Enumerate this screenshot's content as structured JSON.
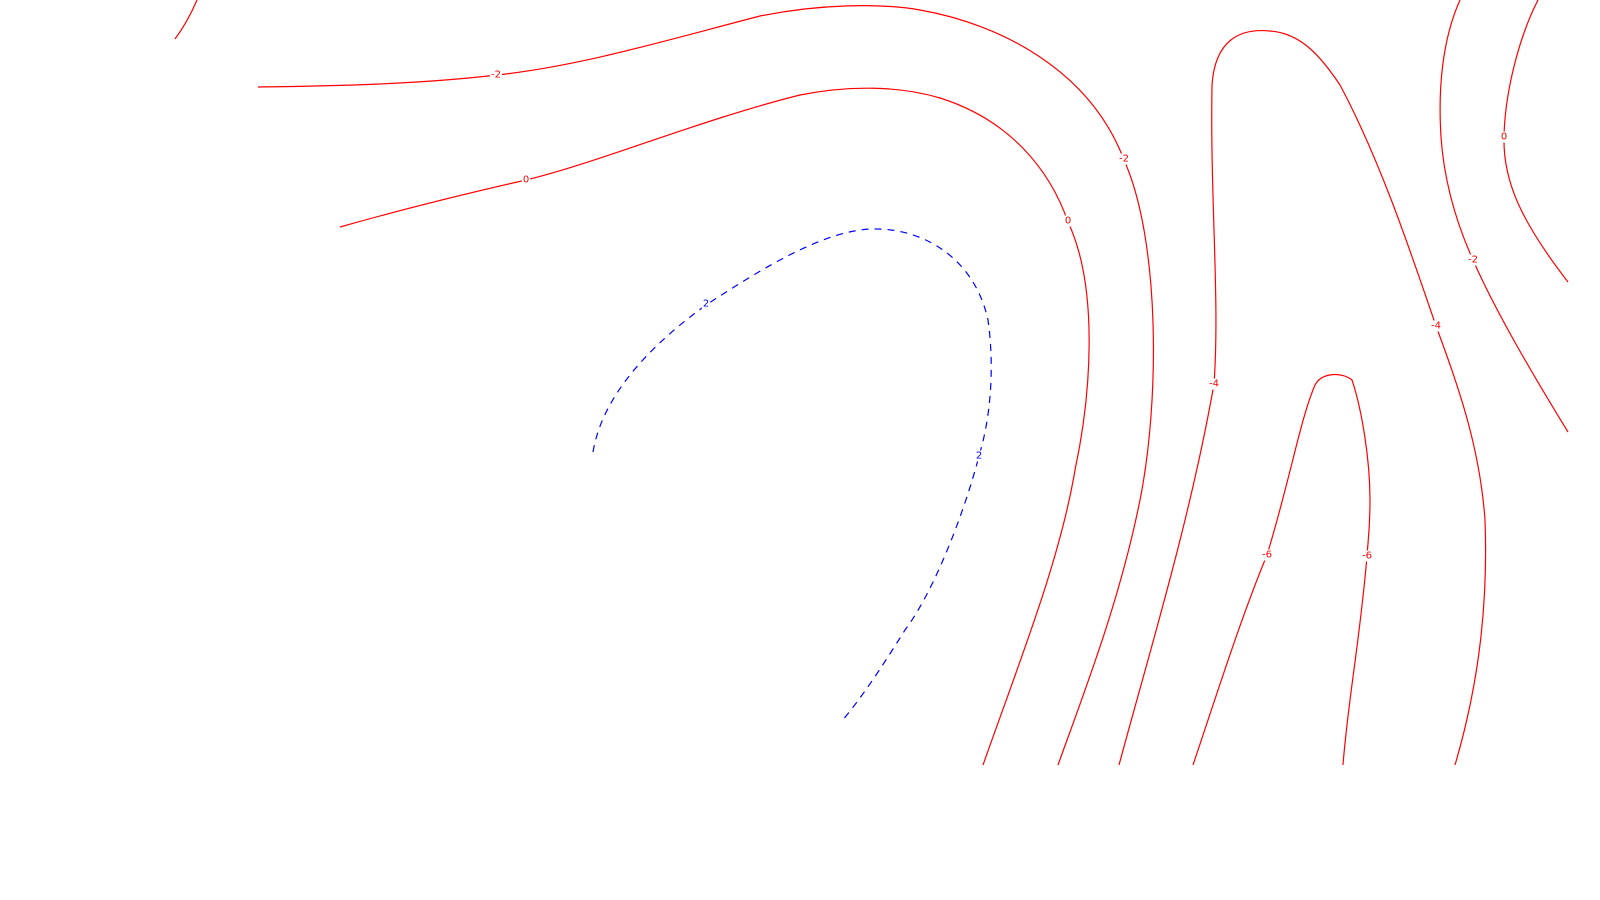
{
  "chart_data": {
    "type": "contour",
    "title": "",
    "xlabel": "",
    "ylabel": "",
    "grid": false,
    "colors": {
      "negative": "#ff0000",
      "positive": "#0000ff",
      "background": "#ffffff"
    },
    "levels": [
      -6,
      -4,
      -2,
      0,
      2
    ],
    "level_styles": {
      "-6": "solid",
      "-4": "solid",
      "-2": "solid",
      "0": "solid",
      "2": "dashed"
    },
    "line_labels": [
      "-2",
      "0",
      "2",
      "2",
      "0",
      "-2",
      "-4",
      "-4",
      "-6",
      "-6",
      "0",
      "-2"
    ]
  }
}
